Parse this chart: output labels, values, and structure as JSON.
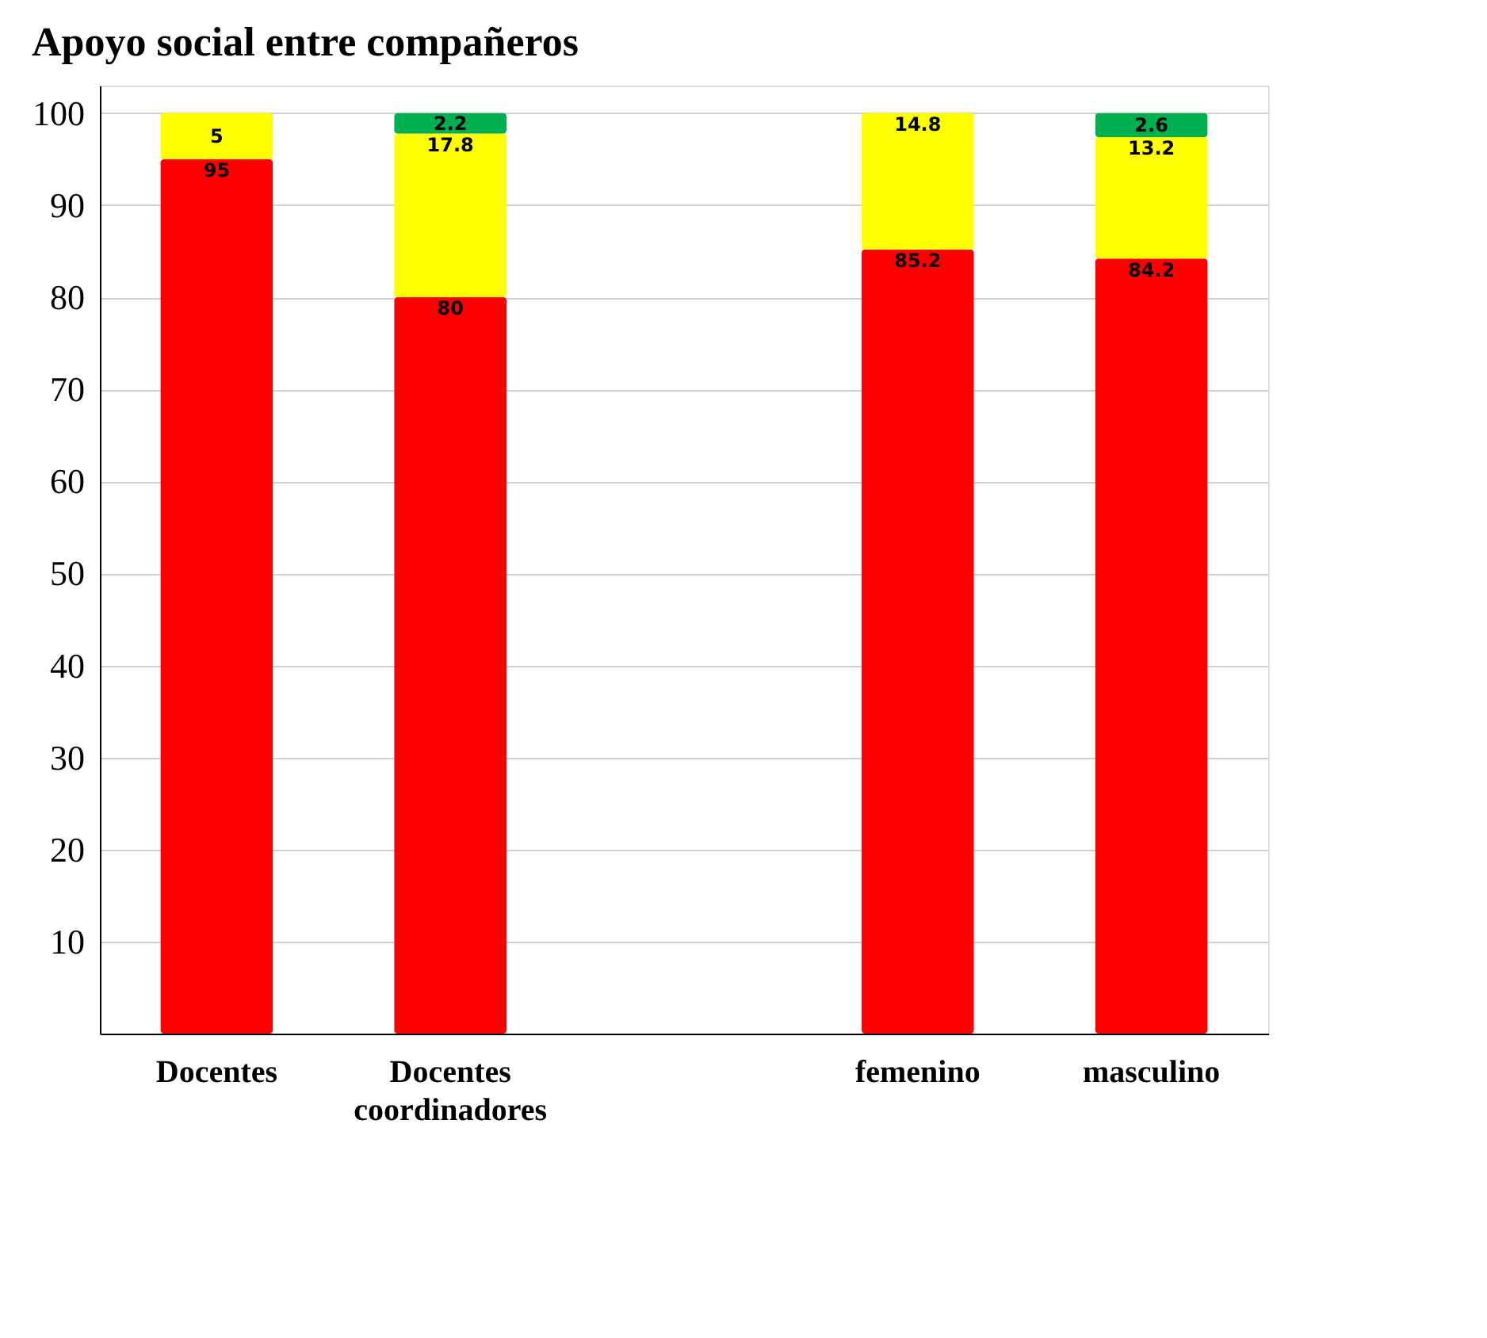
{
  "chart_data": {
    "type": "bar",
    "title": "Apoyo social entre compañeros",
    "categories": [
      "Docentes",
      "Docentes coordinadores",
      null,
      "femenino",
      "masculino"
    ],
    "series": [
      {
        "color": "#ff0000",
        "values": [
          95,
          80,
          null,
          85.2,
          84.2
        ]
      },
      {
        "color": "#ffff00",
        "values": [
          5,
          17.8,
          null,
          14.8,
          13.2
        ]
      },
      {
        "color": "#00b050",
        "values": [
          null,
          2.2,
          null,
          null,
          2.6
        ]
      }
    ],
    "stacked": true,
    "data_labels": true,
    "ylim": [
      0,
      103
    ],
    "yticks": [
      10,
      20,
      30,
      40,
      50,
      60,
      70,
      80,
      90,
      100
    ],
    "grid": "y"
  }
}
